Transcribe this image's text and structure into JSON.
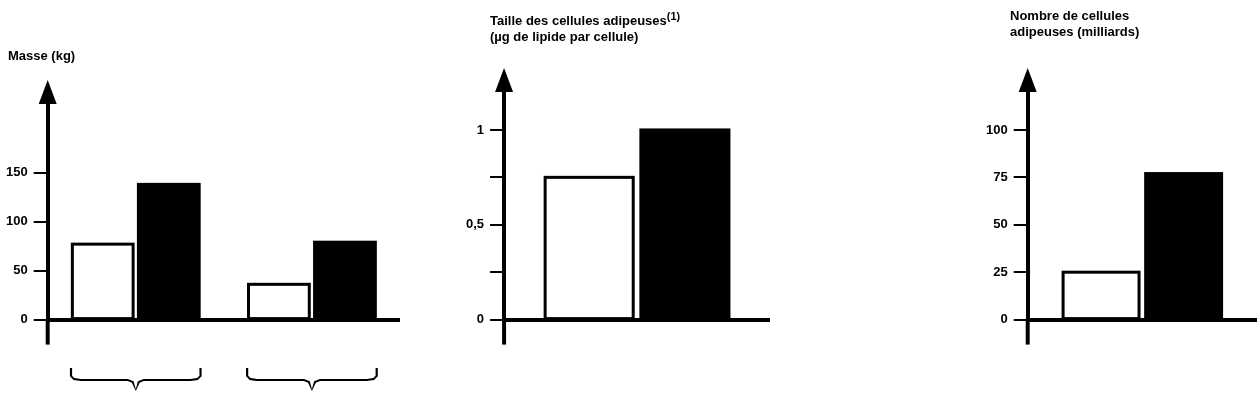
{
  "chart_data": [
    {
      "type": "bar",
      "ylabel": "Masse (kg)",
      "categories": [
        null,
        null
      ],
      "series": [
        {
          "color": "#ffffff",
          "values": [
            77,
            36
          ]
        },
        {
          "color": "#000000",
          "values": [
            138,
            79
          ]
        }
      ],
      "ylim": [
        0,
        220
      ],
      "yticks": [
        0,
        50,
        100,
        150
      ]
    },
    {
      "type": "bar",
      "ylabel": "Taille des cellules adipeuses$^{(1)}$\n(µg de lipide par cellule)",
      "categories": [
        null
      ],
      "series": [
        {
          "color": "#ffffff",
          "values": [
            0.75
          ]
        },
        {
          "color": "#000000",
          "values": [
            1.0
          ]
        }
      ],
      "ylim": [
        0,
        1.2
      ],
      "yticks": [
        0,
        {
          "value": 0.25,
          "label": null
        },
        {
          "value": 0.5,
          "label": "0,5"
        },
        {
          "value": 0.75,
          "label": null
        },
        1
      ]
    },
    {
      "type": "bar",
      "ylabel": "Nombre de cellules\nadipeuses (milliards)",
      "categories": [
        null
      ],
      "series": [
        {
          "color": "#ffffff",
          "values": [
            25
          ]
        },
        {
          "color": "#000000",
          "values": [
            77
          ]
        }
      ],
      "ylim": [
        0,
        120
      ],
      "yticks": [
        0,
        25,
        50,
        75,
        100
      ]
    }
  ]
}
